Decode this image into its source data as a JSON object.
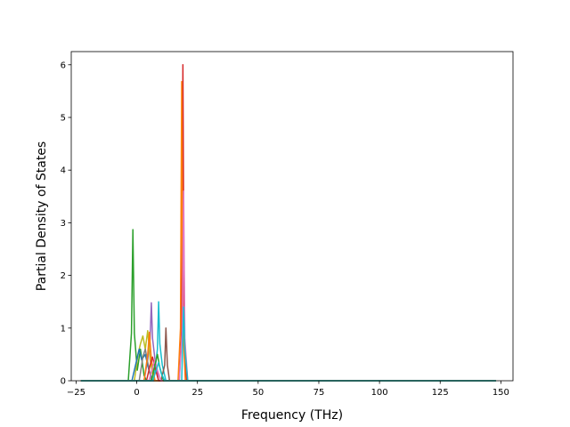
{
  "chart_data": {
    "type": "line",
    "xlabel": "Frequency (THz)",
    "ylabel": "Partial Density of States",
    "xlim": [
      -27,
      155
    ],
    "ylim": [
      0,
      6.25
    ],
    "xticks": [
      -25,
      0,
      25,
      50,
      75,
      100,
      125,
      150
    ],
    "xtick_labels": [
      "−25",
      "0",
      "25",
      "50",
      "75",
      "100",
      "125",
      "150"
    ],
    "yticks": [
      0,
      1,
      2,
      3,
      4,
      5,
      6
    ],
    "ytick_labels": [
      "0",
      "1",
      "2",
      "3",
      "4",
      "5",
      "6"
    ],
    "grid": false,
    "legend": "none",
    "series": [
      {
        "color": "#d62728",
        "x": [
          -23,
          17.5,
          18.5,
          19.0,
          19.5,
          20.5,
          148
        ],
        "y": [
          0,
          0,
          1.0,
          6.0,
          1.0,
          0,
          0
        ]
      },
      {
        "color": "#ff7f0e",
        "x": [
          -23,
          17.0,
          18.0,
          18.5,
          19.0,
          20.0,
          148
        ],
        "y": [
          0,
          0,
          1.0,
          5.68,
          1.0,
          0,
          0
        ]
      },
      {
        "color": "#e377c2",
        "x": [
          -23,
          17.5,
          18.8,
          19.3,
          19.8,
          21.0,
          148
        ],
        "y": [
          0,
          0,
          1.0,
          3.6,
          0.8,
          0,
          0
        ]
      },
      {
        "color": "#2ca02c",
        "x": [
          -23,
          -3.5,
          -2.2,
          -1.6,
          -1.0,
          0.2,
          1.5,
          3.0,
          4.0,
          148
        ],
        "y": [
          0,
          0,
          0.9,
          2.87,
          0.9,
          0.2,
          0.6,
          0.1,
          0,
          0
        ]
      },
      {
        "color": "#9467bd",
        "x": [
          -23,
          3.0,
          4.5,
          5.5,
          6.0,
          6.5,
          7.5,
          9.0,
          148
        ],
        "y": [
          0,
          0,
          0.4,
          0.8,
          1.48,
          0.8,
          0.4,
          0,
          0
        ]
      },
      {
        "color": "#17becf",
        "x": [
          -23,
          7.0,
          8.5,
          9.0,
          9.5,
          10.5,
          12.0,
          18.5,
          19.3,
          19.8,
          21.0,
          148
        ],
        "y": [
          0,
          0,
          0.6,
          1.5,
          0.7,
          0.3,
          0,
          0,
          1.4,
          0.6,
          0,
          0
        ]
      },
      {
        "color": "#8c564b",
        "x": [
          -23,
          10.0,
          11.5,
          12.0,
          12.6,
          13.5,
          148
        ],
        "y": [
          0,
          0,
          0.3,
          1.0,
          0.3,
          0,
          0
        ]
      },
      {
        "color": "#bcbd22",
        "x": [
          -23,
          -1.0,
          0.5,
          1.5,
          2.5,
          3.5,
          4.5,
          5.5,
          7.0,
          148
        ],
        "y": [
          0,
          0,
          0.5,
          0.7,
          0.85,
          0.6,
          0.95,
          0.4,
          0,
          0
        ]
      },
      {
        "color": "#1f77b4",
        "x": [
          -23,
          -2.0,
          -0.5,
          1.0,
          2.0,
          3.5,
          5.0,
          6.5,
          148
        ],
        "y": [
          0,
          0,
          0.3,
          0.6,
          0.4,
          0.5,
          0.2,
          0,
          0
        ]
      },
      {
        "color": "#7f7f7f",
        "x": [
          -23,
          1.0,
          2.5,
          3.5,
          4.5,
          6.0,
          148
        ],
        "y": [
          0,
          0,
          0.45,
          0.6,
          0.35,
          0,
          0
        ]
      },
      {
        "color": "#ff7f0e",
        "x": [
          -23,
          3.0,
          4.5,
          5.2,
          6.0,
          7.5,
          148
        ],
        "y": [
          0,
          0,
          0.5,
          0.92,
          0.4,
          0,
          0
        ]
      },
      {
        "color": "#d62728",
        "x": [
          -23,
          4.0,
          5.5,
          6.5,
          7.5,
          9.0,
          148
        ],
        "y": [
          0,
          0,
          0.3,
          0.45,
          0.25,
          0,
          0
        ]
      },
      {
        "color": "#e377c2",
        "x": [
          -23,
          5.0,
          6.5,
          7.5,
          8.5,
          10.0,
          148
        ],
        "y": [
          0,
          0,
          0.25,
          0.4,
          0.2,
          0,
          0
        ]
      },
      {
        "color": "#2ca02c",
        "x": [
          -23,
          6.0,
          7.5,
          8.5,
          9.5,
          11.0,
          148
        ],
        "y": [
          0,
          0,
          0.3,
          0.5,
          0.25,
          0,
          0
        ]
      },
      {
        "color": "#17becf",
        "x": [
          -23,
          6.5,
          8.0,
          9.0,
          10.0,
          11.5,
          148
        ],
        "y": [
          0,
          0,
          0.2,
          0.35,
          0.15,
          0,
          0
        ]
      }
    ]
  }
}
